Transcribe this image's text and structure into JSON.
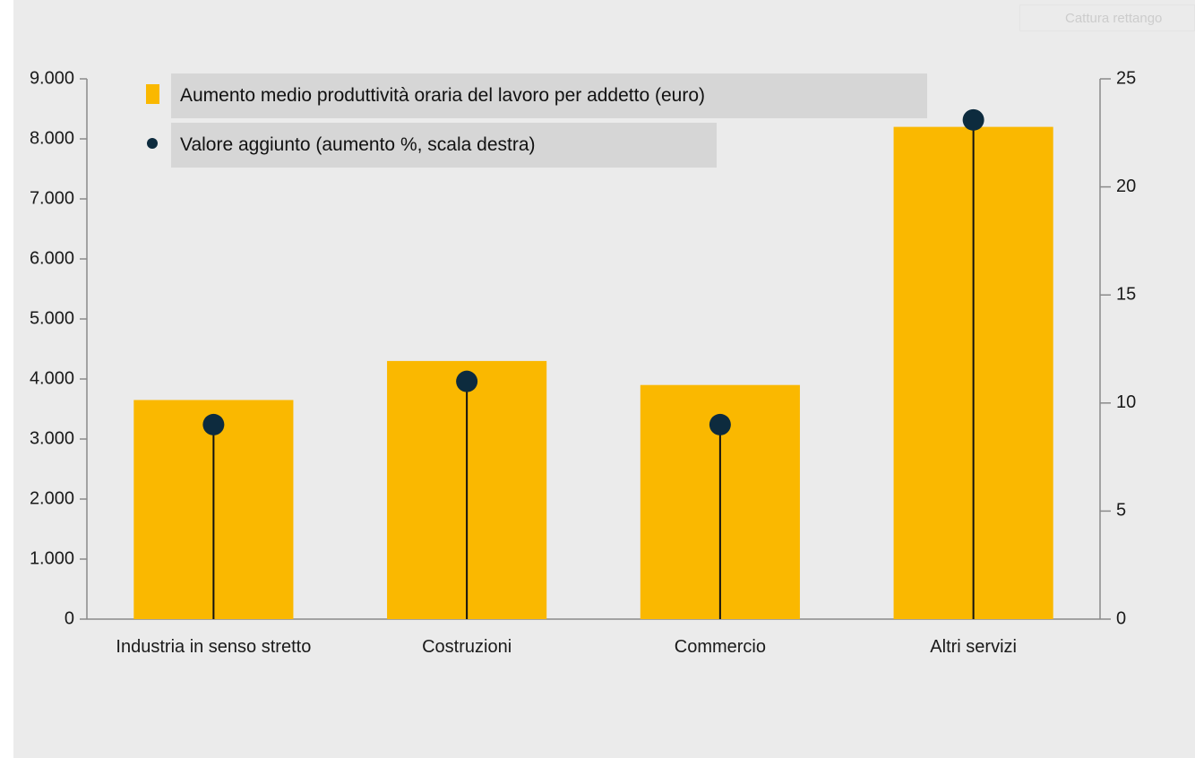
{
  "overlay_button": "Cattura rettango",
  "chart_data": {
    "type": "bar",
    "categories": [
      "Industria in senso stretto",
      "Costruzioni",
      "Commercio",
      "Altri servizi"
    ],
    "series": [
      {
        "name": "Aumento medio produttività oraria del lavoro per addetto (euro)",
        "color": "#fab800",
        "type": "bar",
        "values": [
          3650,
          4300,
          3900,
          8200
        ]
      },
      {
        "name": "Valore aggiunto (aumento %, scala destra)",
        "color": "#0d2b3e",
        "type": "lollipop",
        "axis": "y2",
        "values": [
          9,
          11,
          9,
          23.1
        ]
      }
    ],
    "ylim": [
      0,
      9000
    ],
    "yticks": [
      0,
      {
        "value": 1000,
        "label": "1.000"
      },
      {
        "value": 2000,
        "label": "2.000"
      },
      {
        "value": 3000,
        "label": "3.000"
      },
      {
        "value": 4000,
        "label": "4.000"
      },
      {
        "value": 5000,
        "label": "5.000"
      },
      {
        "value": 6000,
        "label": "6.000"
      },
      {
        "value": 7000,
        "label": "7.000"
      },
      {
        "value": 8000,
        "label": "8.000"
      },
      {
        "value": 9000,
        "label": "9.000"
      }
    ],
    "y2lim": [
      0,
      25
    ],
    "y2ticks": [
      0,
      5,
      10,
      15,
      20,
      25
    ],
    "legend": "top-left"
  }
}
